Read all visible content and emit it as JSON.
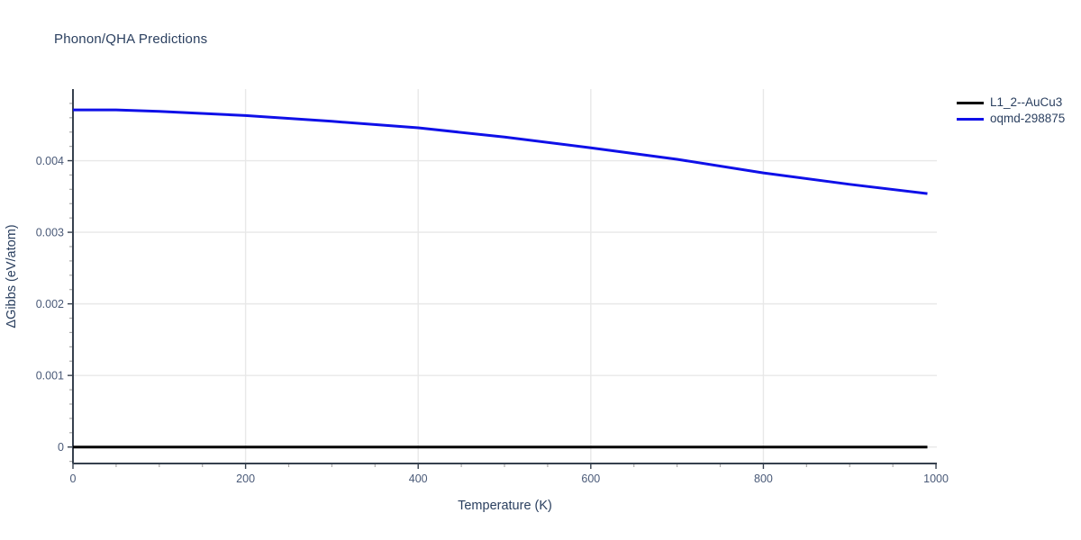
{
  "title": "Phonon/QHA Predictions",
  "legend": {
    "items": [
      {
        "label": "L1_2--AuCu3",
        "color": "#000000"
      },
      {
        "label": "oqmd-298875",
        "color": "#0f10e8"
      }
    ]
  },
  "axes": {
    "x_label": "Temperature (K)",
    "y_label": "ΔGibbs (eV/atom)"
  },
  "colors": {
    "background": "#ffffff",
    "title_text": "#2a3f5f",
    "tick_label": "#4a5a78",
    "grid": "#e8e8e8",
    "axis_line": "#36404e",
    "minor_tick": "#aaaaaa",
    "series_black": "#000000",
    "series_blue": "#0f10e8"
  },
  "chart_data": {
    "type": "line",
    "title": "Phonon/QHA Predictions",
    "xlabel": "Temperature (K)",
    "ylabel": "ΔGibbs (eV/atom)",
    "xlim": [
      0,
      1001
    ],
    "ylim": [
      -0.00023,
      0.005
    ],
    "grid": true,
    "legend_position": "top-right outside plot area",
    "x_major_ticks": [
      0,
      200,
      400,
      600,
      800,
      1000
    ],
    "x_minor_tick_step": 50,
    "y_major_ticks": [
      0,
      0.001,
      0.002,
      0.003,
      0.004
    ],
    "y_minor_tick_step": 0.0002,
    "series": [
      {
        "name": "L1_2--AuCu3",
        "color": "#000000",
        "x": [
          0,
          990
        ],
        "y": [
          0,
          0
        ]
      },
      {
        "name": "oqmd-298875",
        "color": "#0f10e8",
        "x": [
          0,
          50,
          100,
          200,
          300,
          400,
          500,
          600,
          700,
          800,
          900,
          990
        ],
        "y": [
          0.00471,
          0.00471,
          0.00469,
          0.00463,
          0.00455,
          0.00446,
          0.00433,
          0.00418,
          0.00402,
          0.00383,
          0.00367,
          0.00354
        ]
      }
    ]
  }
}
